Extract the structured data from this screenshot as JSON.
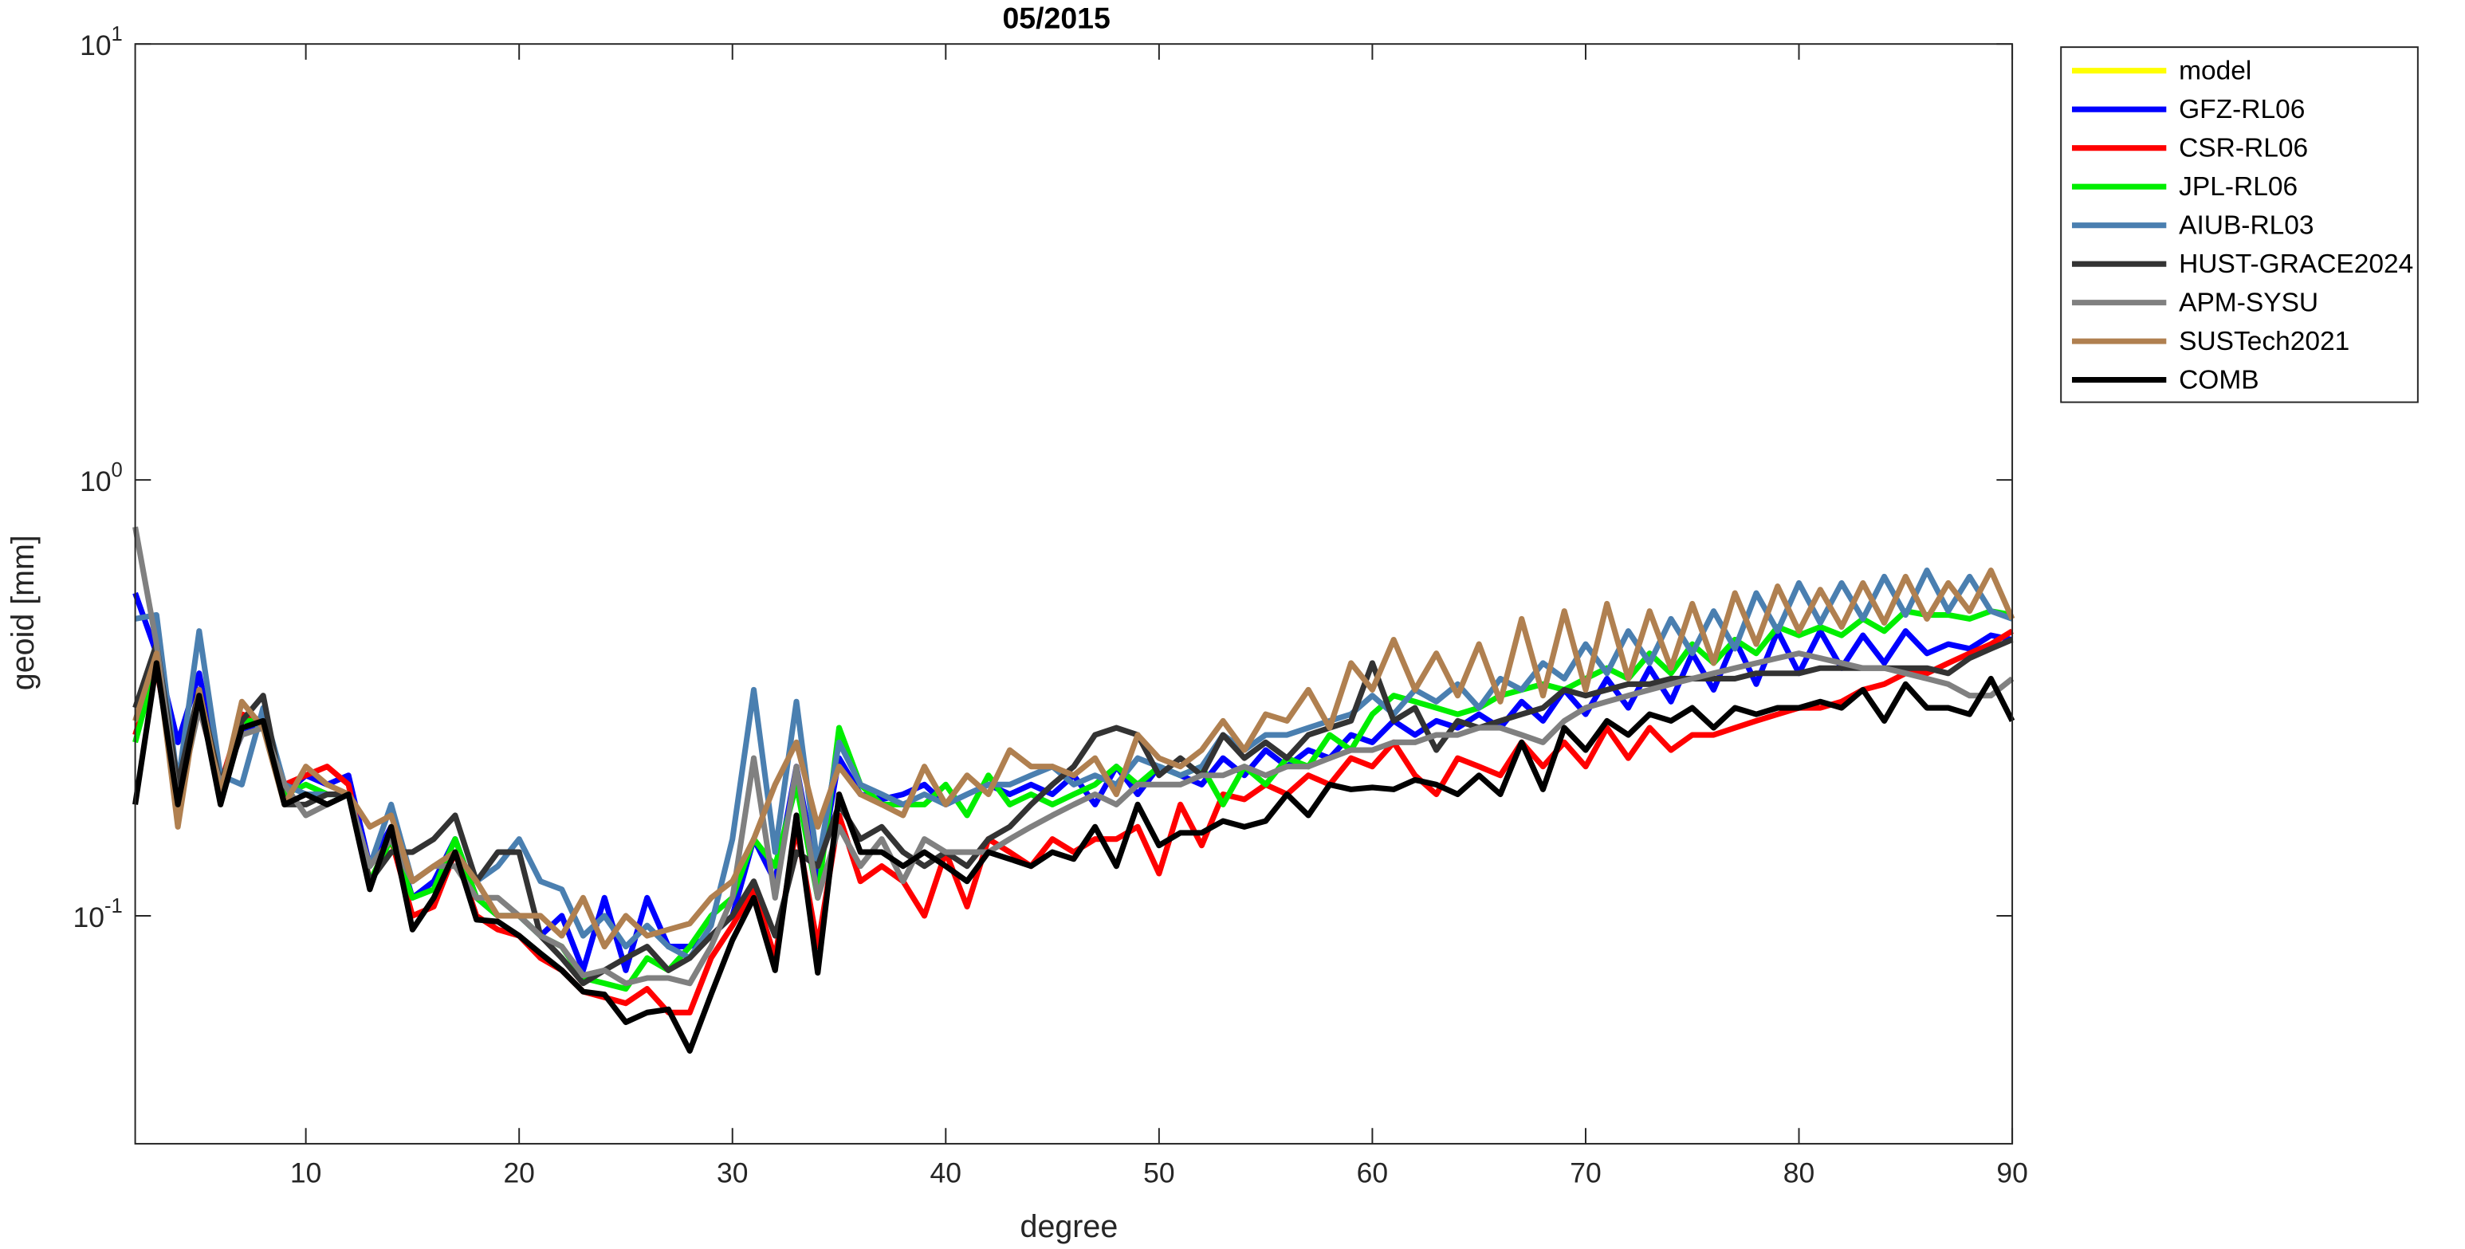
{
  "chart_data": {
    "type": "line",
    "title": "05/2015",
    "xlabel": "degree",
    "ylabel": "geoid [mm]",
    "log_y": true,
    "legend": "outside-right-top",
    "xlim": [
      2,
      90
    ],
    "xticks": [
      10,
      20,
      30,
      40,
      50,
      60,
      70,
      80,
      90
    ],
    "ylim": [
      0.03,
      10
    ],
    "yticks": [
      {
        "value": 0.1,
        "label": "10^-1"
      },
      {
        "value": 1,
        "label": "10^0"
      },
      {
        "value": 10,
        "label": "10^1"
      }
    ],
    "x": [
      2,
      3,
      4,
      5,
      6,
      7,
      8,
      9,
      10,
      11,
      12,
      13,
      14,
      15,
      16,
      17,
      18,
      19,
      20,
      21,
      22,
      23,
      24,
      25,
      26,
      27,
      28,
      29,
      30,
      31,
      32,
      33,
      34,
      35,
      36,
      37,
      38,
      39,
      40,
      41,
      42,
      43,
      44,
      45,
      46,
      47,
      48,
      49,
      50,
      51,
      52,
      53,
      54,
      55,
      56,
      57,
      58,
      59,
      60,
      61,
      62,
      63,
      64,
      65,
      66,
      67,
      68,
      69,
      70,
      71,
      72,
      73,
      74,
      75,
      76,
      77,
      78,
      79,
      80,
      81,
      82,
      83,
      84,
      85,
      86,
      87,
      88,
      89,
      90
    ],
    "series": [
      {
        "name": "model",
        "color": "#ffff00",
        "values": [
          null,
          null,
          null,
          null,
          null,
          null,
          null,
          null,
          null,
          null,
          null,
          null,
          null,
          null,
          null,
          null,
          null,
          null,
          null,
          null,
          null,
          null,
          null,
          null,
          null,
          null,
          null,
          null,
          null,
          null,
          null,
          null,
          null,
          null,
          null,
          null,
          null,
          null,
          null,
          null,
          null,
          null,
          null,
          null,
          null,
          null,
          null,
          null,
          null,
          null,
          null,
          null,
          null,
          null,
          null,
          null,
          null,
          null,
          null,
          null,
          null,
          null,
          null,
          null,
          null,
          null,
          null,
          null,
          null,
          null,
          null,
          null,
          null,
          null,
          null,
          null,
          null,
          null,
          null,
          null,
          null,
          null,
          null,
          null,
          null,
          null,
          null,
          null,
          null
        ]
      },
      {
        "name": "GFZ-RL06",
        "color": "#0000ff",
        "values": [
          0.55,
          0.4,
          0.25,
          0.36,
          0.2,
          0.26,
          0.28,
          0.19,
          0.21,
          0.2,
          0.21,
          0.13,
          0.16,
          0.11,
          0.12,
          0.15,
          0.11,
          0.1,
          0.1,
          0.09,
          0.1,
          0.075,
          0.11,
          0.075,
          0.11,
          0.085,
          0.085,
          0.09,
          0.1,
          0.15,
          0.12,
          0.22,
          0.12,
          0.23,
          0.19,
          0.185,
          0.19,
          0.2,
          0.18,
          0.19,
          0.2,
          0.19,
          0.2,
          0.19,
          0.21,
          0.18,
          0.22,
          0.19,
          0.22,
          0.21,
          0.2,
          0.23,
          0.21,
          0.24,
          0.22,
          0.24,
          0.23,
          0.26,
          0.25,
          0.28,
          0.26,
          0.28,
          0.27,
          0.29,
          0.27,
          0.31,
          0.28,
          0.33,
          0.29,
          0.35,
          0.3,
          0.37,
          0.31,
          0.4,
          0.33,
          0.43,
          0.34,
          0.45,
          0.36,
          0.45,
          0.37,
          0.44,
          0.38,
          0.45,
          0.4,
          0.42,
          0.41,
          0.44,
          0.43
        ]
      },
      {
        "name": "CSR-RL06",
        "color": "#ff0000",
        "values": [
          0.26,
          0.37,
          0.2,
          0.3,
          0.2,
          0.29,
          0.28,
          0.2,
          0.21,
          0.22,
          0.2,
          0.12,
          0.15,
          0.1,
          0.105,
          0.14,
          0.1,
          0.093,
          0.09,
          0.08,
          0.075,
          0.067,
          0.065,
          0.063,
          0.068,
          0.06,
          0.06,
          0.08,
          0.095,
          0.115,
          0.08,
          0.16,
          0.085,
          0.17,
          0.12,
          0.13,
          0.12,
          0.1,
          0.14,
          0.105,
          0.15,
          0.14,
          0.13,
          0.15,
          0.14,
          0.15,
          0.15,
          0.16,
          0.125,
          0.18,
          0.145,
          0.19,
          0.185,
          0.2,
          0.19,
          0.21,
          0.2,
          0.23,
          0.22,
          0.25,
          0.21,
          0.19,
          0.23,
          0.22,
          0.21,
          0.25,
          0.22,
          0.25,
          0.22,
          0.27,
          0.23,
          0.27,
          0.24,
          0.26,
          0.26,
          0.27,
          0.28,
          0.29,
          0.3,
          0.3,
          0.31,
          0.33,
          0.34,
          0.36,
          0.36,
          0.38,
          0.4,
          0.42,
          0.45
        ]
      },
      {
        "name": "JPL-RL06",
        "color": "#00ee00",
        "values": [
          0.25,
          0.38,
          0.19,
          0.33,
          0.19,
          0.28,
          0.28,
          0.19,
          0.2,
          0.19,
          0.19,
          0.12,
          0.15,
          0.11,
          0.115,
          0.15,
          0.11,
          0.1,
          0.1,
          0.09,
          0.085,
          0.072,
          0.07,
          0.068,
          0.08,
          0.075,
          0.085,
          0.1,
          0.11,
          0.15,
          0.13,
          0.2,
          0.11,
          0.27,
          0.2,
          0.18,
          0.18,
          0.18,
          0.2,
          0.17,
          0.21,
          0.18,
          0.19,
          0.18,
          0.19,
          0.2,
          0.22,
          0.2,
          0.22,
          0.21,
          0.22,
          0.18,
          0.22,
          0.2,
          0.23,
          0.22,
          0.26,
          0.24,
          0.29,
          0.32,
          0.31,
          0.3,
          0.29,
          0.3,
          0.32,
          0.33,
          0.34,
          0.33,
          0.35,
          0.37,
          0.35,
          0.4,
          0.36,
          0.42,
          0.38,
          0.43,
          0.4,
          0.46,
          0.44,
          0.46,
          0.44,
          0.48,
          0.45,
          0.5,
          0.49,
          0.49,
          0.48,
          0.5,
          0.49
        ]
      },
      {
        "name": "AIUB-RL03",
        "color": "#4a7fb0",
        "values": [
          0.48,
          0.49,
          0.2,
          0.45,
          0.21,
          0.2,
          0.3,
          0.2,
          0.19,
          0.19,
          0.19,
          0.13,
          0.18,
          0.12,
          0.13,
          0.14,
          0.12,
          0.13,
          0.15,
          0.12,
          0.115,
          0.09,
          0.1,
          0.085,
          0.095,
          0.085,
          0.08,
          0.095,
          0.15,
          0.33,
          0.14,
          0.31,
          0.13,
          0.25,
          0.2,
          0.19,
          0.18,
          0.19,
          0.18,
          0.19,
          0.2,
          0.2,
          0.21,
          0.22,
          0.2,
          0.21,
          0.2,
          0.23,
          0.22,
          0.21,
          0.22,
          0.26,
          0.24,
          0.26,
          0.26,
          0.27,
          0.28,
          0.29,
          0.32,
          0.29,
          0.33,
          0.31,
          0.34,
          0.3,
          0.35,
          0.33,
          0.38,
          0.35,
          0.42,
          0.36,
          0.45,
          0.38,
          0.48,
          0.4,
          0.5,
          0.41,
          0.55,
          0.45,
          0.58,
          0.47,
          0.58,
          0.48,
          0.6,
          0.49,
          0.62,
          0.5,
          0.6,
          0.5,
          0.48
        ]
      },
      {
        "name": "HUST-GRACE2024",
        "color": "#333333",
        "values": [
          0.3,
          0.42,
          0.2,
          0.33,
          0.2,
          0.28,
          0.32,
          0.18,
          0.18,
          0.19,
          0.19,
          0.12,
          0.14,
          0.14,
          0.15,
          0.17,
          0.12,
          0.14,
          0.14,
          0.09,
          0.08,
          0.07,
          0.075,
          0.08,
          0.085,
          0.075,
          0.08,
          0.09,
          0.1,
          0.12,
          0.09,
          0.14,
          0.13,
          0.18,
          0.15,
          0.16,
          0.14,
          0.13,
          0.14,
          0.13,
          0.15,
          0.16,
          0.18,
          0.2,
          0.22,
          0.26,
          0.27,
          0.26,
          0.21,
          0.23,
          0.21,
          0.26,
          0.23,
          0.25,
          0.23,
          0.26,
          0.27,
          0.28,
          0.38,
          0.28,
          0.3,
          0.24,
          0.28,
          0.27,
          0.28,
          0.29,
          0.3,
          0.33,
          0.32,
          0.33,
          0.34,
          0.34,
          0.35,
          0.35,
          0.35,
          0.35,
          0.36,
          0.36,
          0.36,
          0.37,
          0.37,
          0.37,
          0.37,
          0.37,
          0.37,
          0.36,
          0.39,
          0.41,
          0.43
        ]
      },
      {
        "name": "APM-SYSU",
        "color": "#808080",
        "values": [
          0.78,
          0.42,
          0.18,
          0.3,
          0.2,
          0.26,
          0.27,
          0.2,
          0.17,
          0.18,
          0.19,
          0.13,
          0.15,
          0.12,
          0.13,
          0.13,
          0.11,
          0.11,
          0.1,
          0.09,
          0.085,
          0.073,
          0.075,
          0.07,
          0.072,
          0.072,
          0.07,
          0.085,
          0.11,
          0.23,
          0.11,
          0.22,
          0.11,
          0.16,
          0.13,
          0.15,
          0.12,
          0.15,
          0.14,
          0.14,
          0.14,
          0.15,
          0.16,
          0.17,
          0.18,
          0.19,
          0.18,
          0.2,
          0.2,
          0.2,
          0.21,
          0.21,
          0.22,
          0.21,
          0.22,
          0.22,
          0.23,
          0.24,
          0.24,
          0.25,
          0.25,
          0.26,
          0.26,
          0.27,
          0.27,
          0.26,
          0.25,
          0.28,
          0.3,
          0.31,
          0.32,
          0.33,
          0.34,
          0.35,
          0.36,
          0.37,
          0.38,
          0.39,
          0.4,
          0.39,
          0.38,
          0.37,
          0.37,
          0.36,
          0.35,
          0.34,
          0.32,
          0.32,
          0.35
        ]
      },
      {
        "name": "SUSTech2021",
        "color": "#b08050",
        "values": [
          0.28,
          0.4,
          0.16,
          0.33,
          0.19,
          0.31,
          0.27,
          0.18,
          0.22,
          0.2,
          0.19,
          0.16,
          0.17,
          0.12,
          0.13,
          0.14,
          0.12,
          0.1,
          0.1,
          0.1,
          0.09,
          0.11,
          0.085,
          0.1,
          0.09,
          0.093,
          0.096,
          0.11,
          0.12,
          0.15,
          0.2,
          0.25,
          0.16,
          0.22,
          0.19,
          0.18,
          0.17,
          0.22,
          0.18,
          0.21,
          0.19,
          0.24,
          0.22,
          0.22,
          0.21,
          0.23,
          0.19,
          0.26,
          0.23,
          0.22,
          0.24,
          0.28,
          0.24,
          0.29,
          0.28,
          0.33,
          0.27,
          0.38,
          0.33,
          0.43,
          0.33,
          0.4,
          0.32,
          0.42,
          0.31,
          0.48,
          0.32,
          0.5,
          0.33,
          0.52,
          0.35,
          0.5,
          0.37,
          0.52,
          0.38,
          0.55,
          0.42,
          0.57,
          0.45,
          0.56,
          0.46,
          0.58,
          0.47,
          0.6,
          0.48,
          0.58,
          0.5,
          0.62,
          0.48
        ]
      },
      {
        "name": "COMB",
        "color": "#000000",
        "values": [
          0.18,
          0.38,
          0.18,
          0.32,
          0.18,
          0.27,
          0.28,
          0.18,
          0.19,
          0.18,
          0.19,
          0.115,
          0.16,
          0.093,
          0.11,
          0.14,
          0.098,
          0.097,
          0.09,
          0.082,
          0.075,
          0.067,
          0.066,
          0.057,
          0.06,
          0.061,
          0.049,
          0.066,
          0.088,
          0.11,
          0.075,
          0.17,
          0.074,
          0.19,
          0.14,
          0.14,
          0.13,
          0.14,
          0.13,
          0.12,
          0.14,
          0.135,
          0.13,
          0.14,
          0.135,
          0.16,
          0.13,
          0.18,
          0.145,
          0.155,
          0.155,
          0.165,
          0.16,
          0.165,
          0.19,
          0.17,
          0.2,
          0.195,
          0.197,
          0.195,
          0.205,
          0.2,
          0.19,
          0.21,
          0.19,
          0.25,
          0.195,
          0.27,
          0.24,
          0.28,
          0.26,
          0.29,
          0.28,
          0.3,
          0.27,
          0.3,
          0.29,
          0.3,
          0.3,
          0.31,
          0.3,
          0.33,
          0.28,
          0.34,
          0.3,
          0.3,
          0.29,
          0.35,
          0.28
        ]
      }
    ]
  }
}
